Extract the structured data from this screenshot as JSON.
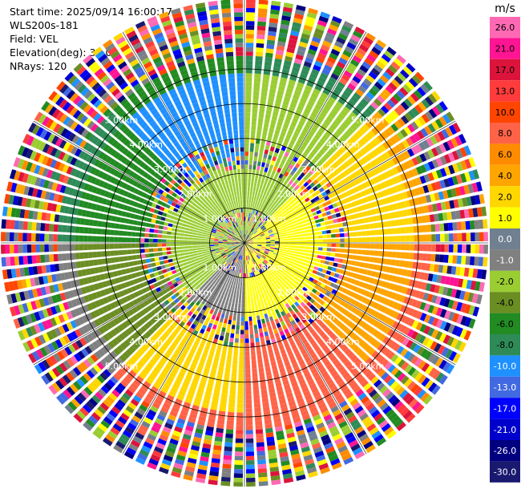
{
  "header": {
    "start_time": "Start time: 2025/09/14 16:00:17",
    "instrument": "WLS200s-181",
    "field": "Field: VEL",
    "elevation": "Elevation(deg): 35.00",
    "nrays": "NRays: 120"
  },
  "chart_data": {
    "type": "heatmap",
    "projection": "polar-ppi",
    "field": "VEL",
    "n_rays": 120,
    "elevation_deg": 35.0,
    "range_rings_km": [
      1.0,
      2.0,
      3.0,
      4.0,
      5.0
    ],
    "range_ring_labels": [
      "1.00km",
      "2.00km",
      "3.00km",
      "4.00km",
      "5.00km"
    ],
    "max_range_km": 7.0,
    "grid": true,
    "colorbar": {
      "unit": "m/s",
      "ticks": [
        "26.0",
        "21.0",
        "17.0",
        "13.0",
        "10.0",
        "8.0",
        "6.0",
        "4.0",
        "2.0",
        "1.0",
        "0.0",
        "-1.0",
        "-2.0",
        "-4.0",
        "-6.0",
        "-8.0",
        "-10.0",
        "-13.0",
        "-17.0",
        "-21.0",
        "-26.0",
        "-30.0"
      ],
      "colors": [
        "#ff69b4",
        "#ff1493",
        "#dc143c",
        "#ff3b3b",
        "#ff4500",
        "#ff6347",
        "#ff8c00",
        "#ffa500",
        "#ffd700",
        "#ffff00",
        "#708090",
        "#808080",
        "#9acd32",
        "#6b8e23",
        "#228b22",
        "#2e8b57",
        "#1e90ff",
        "#4169e1",
        "#0000ff",
        "#0000cd",
        "#000080",
        "#191970"
      ]
    },
    "sectors_deg_cw_from_north": [
      {
        "from": 0,
        "to": 45,
        "near": "#9acd32",
        "mid": "#9acd32",
        "far": "#2e8b57"
      },
      {
        "from": 45,
        "to": 90,
        "near": "#ffff00",
        "mid": "#ffd700",
        "far": "#ffa500"
      },
      {
        "from": 90,
        "to": 135,
        "near": "#ffff00",
        "mid": "#ffa500",
        "far": "#ff6347"
      },
      {
        "from": 135,
        "to": 180,
        "near": "#ffff00",
        "mid": "#ff6347",
        "far": "#ff6347"
      },
      {
        "from": 180,
        "to": 225,
        "near": "#808080",
        "mid": "#ffd700",
        "far": "#ff6347"
      },
      {
        "from": 225,
        "to": 270,
        "near": "#9acd32",
        "mid": "#6b8e23",
        "far": "#808080"
      },
      {
        "from": 270,
        "to": 315,
        "near": "#9acd32",
        "mid": "#228b22",
        "far": "#2e8b57"
      },
      {
        "from": 315,
        "to": 360,
        "near": "#9acd32",
        "mid": "#1e90ff",
        "far": "#228b22"
      }
    ]
  }
}
